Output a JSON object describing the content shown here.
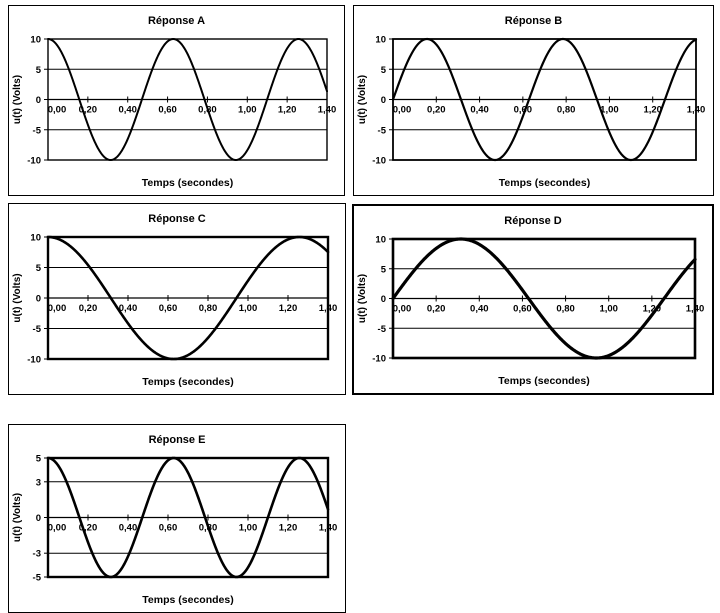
{
  "page": {
    "background_color": "#ffffff",
    "text_color": "#000000"
  },
  "chart_data": [
    {
      "type": "line",
      "id": "A",
      "title": "Réponse A",
      "xlabel": "Temps (secondes)",
      "ylabel": "u(t) (Volts)",
      "xlim": [
        0,
        1.4
      ],
      "ylim": [
        -10,
        10
      ],
      "x_tick_values": [
        0,
        0.2,
        0.4,
        0.6,
        0.8,
        1.0,
        1.2,
        1.4
      ],
      "x_tick_labels": [
        "0,00",
        "0,20",
        "0,40",
        "0,60",
        "0,80",
        "1,00",
        "1,20",
        "1,40"
      ],
      "y_tick_values": [
        10,
        5,
        0,
        -5,
        -10
      ],
      "y_tick_labels": [
        "10",
        "5",
        "0",
        "-5",
        "-10"
      ],
      "grid": "horizontal",
      "legend": "none",
      "line_color": "#000000",
      "waveform": {
        "function": "cosine",
        "amplitude_volts": 10,
        "angular_frequency_rad_per_s": 10,
        "period_s": 0.628,
        "equation": "u(t) = 10 cos(10t)"
      },
      "samples": {
        "dt_s": 0.1,
        "t": [
          0,
          0.1,
          0.2,
          0.3,
          0.4,
          0.5,
          0.6,
          0.7,
          0.8,
          0.9,
          1.0,
          1.1,
          1.2,
          1.3,
          1.4
        ],
        "u": [
          10,
          5.4,
          -4.16,
          -9.9,
          -6.54,
          2.84,
          9.6,
          7.54,
          -1.46,
          -9.11,
          -8.39,
          0.04,
          8.44,
          9.07,
          1.37
        ]
      }
    },
    {
      "type": "line",
      "id": "B",
      "title": "Réponse B",
      "xlabel": "Temps (secondes)",
      "ylabel": "u(t) (Volts)",
      "xlim": [
        0,
        1.4
      ],
      "ylim": [
        -10,
        10
      ],
      "x_tick_values": [
        0,
        0.2,
        0.4,
        0.6,
        0.8,
        1.0,
        1.2,
        1.4
      ],
      "x_tick_labels": [
        "0,00",
        "0,20",
        "0,40",
        "0,60",
        "0,80",
        "1,00",
        "1,20",
        "1,40"
      ],
      "y_tick_values": [
        10,
        5,
        0,
        -5,
        -10
      ],
      "y_tick_labels": [
        "10",
        "5",
        "0",
        "-5",
        "-10"
      ],
      "grid": "horizontal",
      "legend": "none",
      "line_color": "#000000",
      "waveform": {
        "function": "sine",
        "amplitude_volts": 10,
        "angular_frequency_rad_per_s": 10,
        "period_s": 0.628,
        "equation": "u(t) = 10 sin(10t)"
      },
      "samples": {
        "dt_s": 0.1,
        "t": [
          0,
          0.1,
          0.2,
          0.3,
          0.4,
          0.5,
          0.6,
          0.7,
          0.8,
          0.9,
          1.0,
          1.1,
          1.2,
          1.3,
          1.4
        ],
        "u": [
          0,
          8.41,
          9.09,
          1.41,
          -7.57,
          -9.59,
          -2.79,
          6.57,
          9.89,
          4.12,
          -5.44,
          -10,
          -5.37,
          4.2,
          9.91
        ]
      }
    },
    {
      "type": "line",
      "id": "C",
      "title": "Réponse C",
      "xlabel": "Temps (secondes)",
      "ylabel": "u(t) (Volts)",
      "xlim": [
        0,
        1.4
      ],
      "ylim": [
        -10,
        10
      ],
      "x_tick_values": [
        0,
        0.2,
        0.4,
        0.6,
        0.8,
        1.0,
        1.2,
        1.4
      ],
      "x_tick_labels": [
        "0,00",
        "0,20",
        "0,40",
        "0,60",
        "0,80",
        "1,00",
        "1,20",
        "1,40"
      ],
      "y_tick_values": [
        10,
        5,
        0,
        -5,
        -10
      ],
      "y_tick_labels": [
        "10",
        "5",
        "0",
        "-5",
        "-10"
      ],
      "grid": "horizontal",
      "legend": "none",
      "line_color": "#000000",
      "waveform": {
        "function": "cosine",
        "amplitude_volts": 10,
        "angular_frequency_rad_per_s": 5,
        "period_s": 1.257,
        "equation": "u(t) = 10 cos(5t)"
      },
      "samples": {
        "dt_s": 0.1,
        "t": [
          0,
          0.1,
          0.2,
          0.3,
          0.4,
          0.5,
          0.6,
          0.7,
          0.8,
          0.9,
          1.0,
          1.1,
          1.2,
          1.3,
          1.4
        ],
        "u": [
          10,
          8.78,
          5.4,
          0.71,
          -4.16,
          -8.01,
          -9.9,
          -9.36,
          -6.54,
          -2.11,
          2.84,
          7.09,
          9.6,
          9.77,
          7.54
        ]
      }
    },
    {
      "type": "line",
      "id": "D",
      "title": "Réponse D",
      "xlabel": "Temps (secondes)",
      "ylabel": "u(t) (Volts)",
      "xlim": [
        0,
        1.4
      ],
      "ylim": [
        -10,
        10
      ],
      "x_tick_values": [
        0,
        0.2,
        0.4,
        0.6,
        0.8,
        1.0,
        1.2,
        1.4
      ],
      "x_tick_labels": [
        "0,00",
        "0,20",
        "0,40",
        "0,60",
        "0,80",
        "1,00",
        "1,20",
        "1,40"
      ],
      "y_tick_values": [
        10,
        5,
        0,
        -5,
        -10
      ],
      "y_tick_labels": [
        "10",
        "5",
        "0",
        "-5",
        "-10"
      ],
      "grid": "horizontal",
      "legend": "none",
      "line_color": "#000000",
      "waveform": {
        "function": "sine",
        "amplitude_volts": 10,
        "angular_frequency_rad_per_s": 5,
        "period_s": 1.257,
        "equation": "u(t) = 10 sin(5t)"
      },
      "samples": {
        "dt_s": 0.1,
        "t": [
          0,
          0.1,
          0.2,
          0.3,
          0.4,
          0.5,
          0.6,
          0.7,
          0.8,
          0.9,
          1.0,
          1.1,
          1.2,
          1.3,
          1.4
        ],
        "u": [
          0,
          4.79,
          8.41,
          9.97,
          9.09,
          5.98,
          1.41,
          -3.51,
          -7.57,
          -9.78,
          -9.59,
          -7.06,
          -2.79,
          2.15,
          6.57
        ]
      }
    },
    {
      "type": "line",
      "id": "E",
      "title": "Réponse E",
      "xlabel": "Temps (secondes)",
      "ylabel": "u(t) (Volts)",
      "xlim": [
        0,
        1.4
      ],
      "ylim": [
        -5,
        5
      ],
      "x_tick_values": [
        0,
        0.2,
        0.4,
        0.6,
        0.8,
        1.0,
        1.2,
        1.4
      ],
      "x_tick_labels": [
        "0,00",
        "0,20",
        "0,40",
        "0,60",
        "0,80",
        "1,00",
        "1,20",
        "1,40"
      ],
      "y_tick_values": [
        5,
        3,
        0,
        -3,
        -5
      ],
      "y_tick_labels": [
        "5",
        "3",
        "0",
        "-3",
        "-5"
      ],
      "grid": "horizontal",
      "legend": "none",
      "line_color": "#000000",
      "waveform": {
        "function": "cosine",
        "amplitude_volts": 5,
        "angular_frequency_rad_per_s": 10,
        "period_s": 0.628,
        "equation": "u(t) = 5 cos(10t)"
      },
      "samples": {
        "dt_s": 0.1,
        "t": [
          0,
          0.1,
          0.2,
          0.3,
          0.4,
          0.5,
          0.6,
          0.7,
          0.8,
          0.9,
          1.0,
          1.1,
          1.2,
          1.3,
          1.4
        ],
        "u": [
          5,
          2.7,
          -2.08,
          -4.95,
          -3.27,
          1.42,
          4.8,
          3.77,
          -0.73,
          -4.56,
          -4.2,
          0.02,
          4.22,
          4.53,
          0.68
        ]
      }
    }
  ]
}
